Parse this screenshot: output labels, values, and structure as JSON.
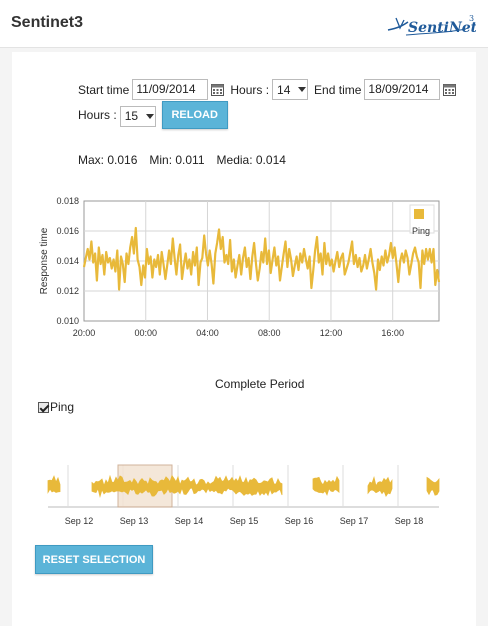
{
  "app": {
    "title": "Sentinet3",
    "logo_text": "SentiNet3"
  },
  "form": {
    "start_label": "Start time",
    "start_value": "11/09/2014",
    "hours1_label": "Hours :",
    "hours1_value": "14",
    "end_label": "End time",
    "end_value": "18/09/2014",
    "hours2_label": "Hours :",
    "hours2_value": "15",
    "reload_label": "RELOAD"
  },
  "stats": {
    "max": "Max: 0.016",
    "min": "Min: 0.011",
    "media": "Media: 0.014"
  },
  "colors": {
    "accent": "#5bb4d8",
    "series": "#e8b93a",
    "selection": "#f3e3d3"
  },
  "chart_data": [
    {
      "type": "line",
      "ylabel": "Response time",
      "xlabel": "",
      "ylim": [
        0.01,
        0.018
      ],
      "yticks": [
        "0.018",
        "0.016",
        "0.014",
        "0.012",
        "0.010"
      ],
      "xticks": [
        "20:00",
        "00:00",
        "04:00",
        "08:00",
        "12:00",
        "16:00"
      ],
      "grid": true,
      "legend": "top-right",
      "series": [
        {
          "name": "Ping",
          "x_start": "20:00",
          "x_end": "19:00",
          "values": [
            0.0136,
            0.0142,
            0.0148,
            0.0141,
            0.0153,
            0.0139,
            0.0145,
            0.0127,
            0.0149,
            0.0138,
            0.0144,
            0.0131,
            0.0146,
            0.0139,
            0.0142,
            0.0135,
            0.0141,
            0.0133,
            0.0147,
            0.0121,
            0.0143,
            0.0138,
            0.0126,
            0.0145,
            0.0138,
            0.0149,
            0.0156,
            0.0145,
            0.0162,
            0.0141,
            0.0136,
            0.0124,
            0.0137,
            0.0129,
            0.0148,
            0.0138,
            0.0143,
            0.0129,
            0.0141,
            0.0136,
            0.0144,
            0.0131,
            0.0146,
            0.0138,
            0.0128,
            0.0137,
            0.0147,
            0.0138,
            0.0155,
            0.0142,
            0.0131,
            0.0144,
            0.0151,
            0.0128,
            0.0137,
            0.0145,
            0.0135,
            0.0141,
            0.0131,
            0.0146,
            0.0137,
            0.0149,
            0.0124,
            0.0139,
            0.0142,
            0.0157,
            0.0145,
            0.0137,
            0.0147,
            0.0138,
            0.0125,
            0.0145,
            0.0152,
            0.0161,
            0.0148,
            0.0156,
            0.0139,
            0.0144,
            0.0138,
            0.0154,
            0.0133,
            0.0141,
            0.0129,
            0.0137,
            0.0144,
            0.0131,
            0.0142,
            0.0149,
            0.0136,
            0.0142,
            0.0128,
            0.0143,
            0.0152,
            0.0138,
            0.0127,
            0.0135,
            0.0146,
            0.0139,
            0.0155,
            0.0138,
            0.0147,
            0.0132,
            0.0141,
            0.0149,
            0.0137,
            0.0143,
            0.0127,
            0.0136,
            0.0145,
            0.0153,
            0.0136,
            0.0148,
            0.0141,
            0.013,
            0.0137,
            0.0143,
            0.0134,
            0.0145,
            0.0139,
            0.0148,
            0.0141,
            0.0135,
            0.0143,
            0.0122,
            0.0134,
            0.0147,
            0.0156,
            0.0139,
            0.0145,
            0.0131,
            0.0152,
            0.0138,
            0.0145,
            0.0137,
            0.0141,
            0.0133,
            0.014,
            0.0146,
            0.0136,
            0.0142,
            0.0145,
            0.0131,
            0.0135,
            0.0139,
            0.0146,
            0.0153,
            0.0138,
            0.0144,
            0.0136,
            0.0142,
            0.0133,
            0.0137,
            0.0144,
            0.0135,
            0.0141,
            0.0148,
            0.0139,
            0.0132,
            0.0121,
            0.0141,
            0.0134,
            0.0143,
            0.0137,
            0.0147,
            0.0139,
            0.0144,
            0.0152,
            0.0142,
            0.0149,
            0.0138,
            0.0126,
            0.014,
            0.0145,
            0.0139,
            0.0147,
            0.0142,
            0.0131,
            0.0138,
            0.0145,
            0.0149,
            0.0143,
            0.0139,
            0.0122,
            0.0147,
            0.0138,
            0.0148,
            0.0141,
            0.0148,
            0.0139,
            0.0148,
            0.0124,
            0.0134,
            0.0126
          ]
        }
      ]
    },
    {
      "type": "area",
      "title": "Complete Period",
      "xticks": [
        "Sep 12",
        "Sep 13",
        "Sep 14",
        "Sep 15",
        "Sep 16",
        "Sep 17",
        "Sep 18"
      ],
      "series": [
        {
          "name": "Ping",
          "selected": true
        }
      ],
      "selection": {
        "from": "Sep 12 20:00",
        "to": "Sep 13 19:00"
      }
    }
  ],
  "navigator": {
    "title": "Complete Period",
    "checkbox_label": "Ping",
    "reset_label": "RESET SELECTION"
  }
}
